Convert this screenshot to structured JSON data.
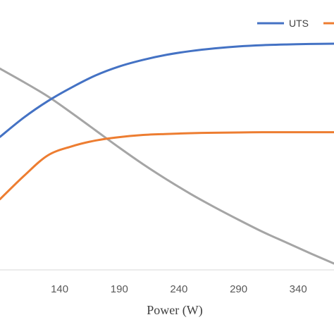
{
  "chart_data": {
    "type": "line",
    "xlabel": "Power (W)",
    "xlim": [
      90,
      370
    ],
    "ylim": [
      0,
      100
    ],
    "x_ticks": [
      "140",
      "190",
      "240",
      "290",
      "340"
    ],
    "grid": false,
    "legend_position": "top-right",
    "series": [
      {
        "name": "UTS",
        "color": "#4472C4",
        "x": [
          90,
          110,
          130,
          150,
          170,
          190,
          210,
          230,
          250,
          270,
          290,
          310,
          330,
          350,
          370
        ],
        "y": [
          54.4,
          62.3,
          69.0,
          74.6,
          79.5,
          83.2,
          85.9,
          88.0,
          89.5,
          90.6,
          91.4,
          91.9,
          92.2,
          92.4,
          92.5
        ]
      },
      {
        "name": "",
        "color": "#ED7D31",
        "x": [
          90,
          110,
          130,
          150,
          170,
          190,
          210,
          230,
          250,
          270,
          290,
          310,
          330,
          350,
          370
        ],
        "y": [
          28.9,
          38.4,
          46.8,
          50.5,
          52.9,
          54.3,
          55.2,
          55.6,
          55.9,
          56.1,
          56.2,
          56.3,
          56.3,
          56.3,
          56.3
        ]
      },
      {
        "name": "",
        "color": "#A5A5A5",
        "x": [
          90,
          110,
          130,
          150,
          170,
          190,
          210,
          230,
          250,
          270,
          290,
          310,
          330,
          350,
          370
        ],
        "y": [
          82.3,
          76.8,
          71.0,
          64.2,
          57.1,
          50.0,
          43.2,
          36.9,
          31.0,
          25.6,
          20.5,
          15.6,
          11.2,
          6.8,
          2.6
        ]
      }
    ]
  }
}
